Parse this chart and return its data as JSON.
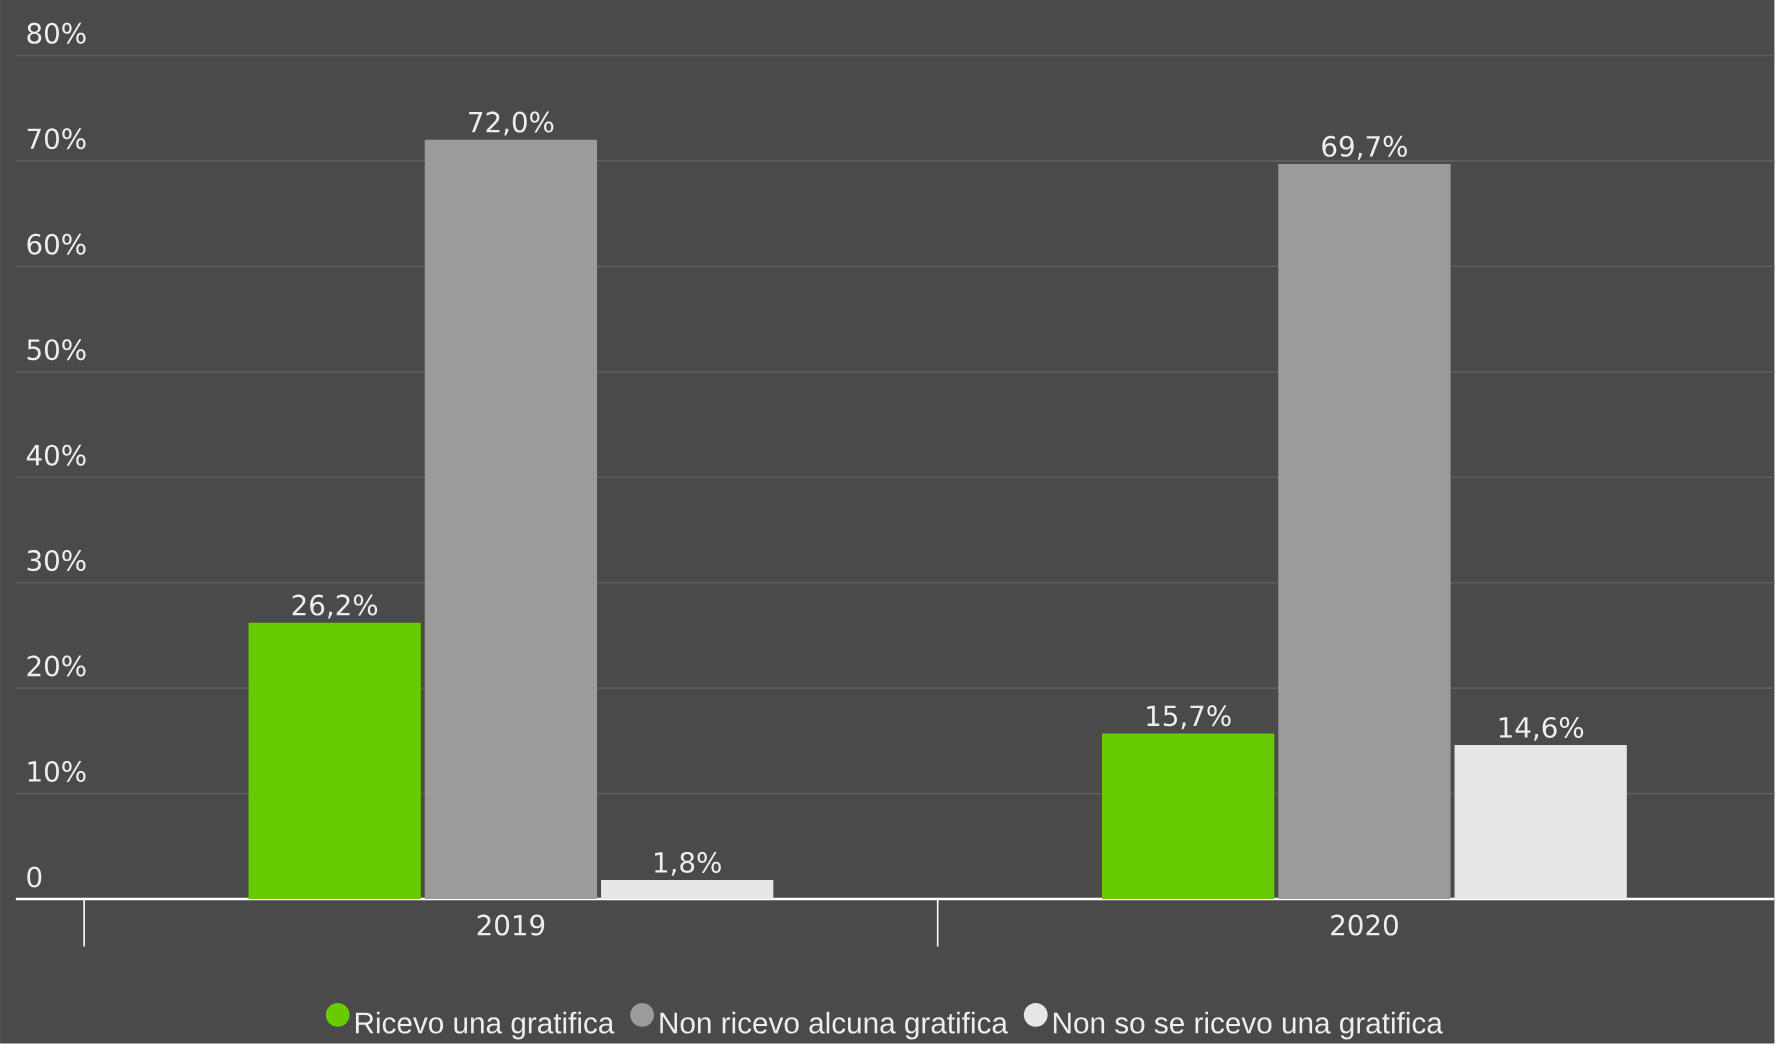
{
  "chart_data": {
    "type": "bar",
    "categories": [
      "2019",
      "2020"
    ],
    "series": [
      {
        "name": "Ricevo una gratifica",
        "color": "#66cc00",
        "values": [
          26.2,
          15.7
        ],
        "value_labels": [
          "26,2%",
          "15,7%"
        ]
      },
      {
        "name": "Non ricevo alcuna gratifica",
        "color": "#9b9b9b",
        "values": [
          72.0,
          69.7
        ],
        "value_labels": [
          "72,0%",
          "69,7%"
        ]
      },
      {
        "name": "Non so se ricevo una gratifica",
        "color": "#e6e6e6",
        "values": [
          1.8,
          14.6
        ],
        "value_labels": [
          "1,8%",
          "14,6%"
        ]
      }
    ],
    "ylim": [
      0,
      80
    ],
    "yticks": [
      0,
      {
        "value": 10,
        "label": "10%"
      },
      {
        "value": 20,
        "label": "20%"
      },
      {
        "value": 30,
        "label": "30%"
      },
      {
        "value": 40,
        "label": "40%"
      },
      {
        "value": 50,
        "label": "50%"
      },
      {
        "value": 60,
        "label": "60%"
      },
      {
        "value": 70,
        "label": "70%"
      },
      {
        "value": 80,
        "label": "80%"
      }
    ],
    "grid": "y",
    "legend": "bottom"
  }
}
